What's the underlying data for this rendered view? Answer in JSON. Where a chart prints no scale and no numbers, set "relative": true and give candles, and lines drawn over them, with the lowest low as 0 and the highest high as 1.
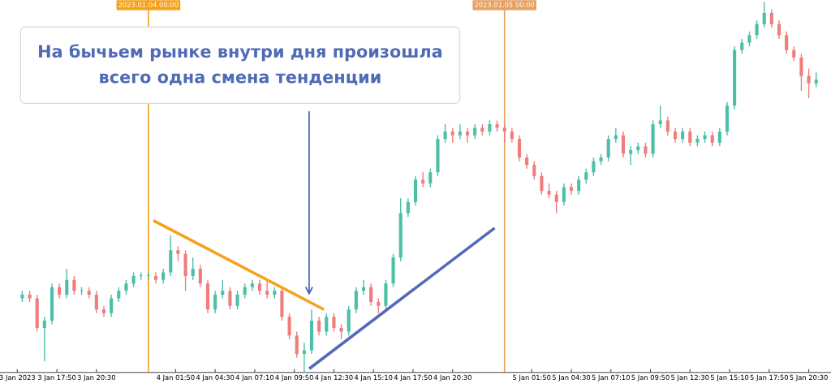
{
  "chart_data": {
    "type": "candlestick",
    "relative": true,
    "x": [
      "2023-01-03T15:30",
      "2023-01-03T16:00",
      "2023-01-03T16:30",
      "2023-01-03T17:00",
      "2023-01-03T17:30",
      "2023-01-03T18:00",
      "2023-01-03T18:30",
      "2023-01-03T19:00",
      "2023-01-03T19:30",
      "2023-01-03T20:00",
      "2023-01-03T20:30",
      "2023-01-03T21:00",
      "2023-01-03T21:30",
      "2023-01-03T22:00",
      "2023-01-03T22:30",
      "2023-01-03T23:00",
      "2023-01-03T23:30",
      "2023-01-04T00:00",
      "2023-01-04T00:30",
      "2023-01-04T01:00",
      "2023-01-04T01:30",
      "2023-01-04T02:00",
      "2023-01-04T02:30",
      "2023-01-04T03:00",
      "2023-01-04T03:30",
      "2023-01-04T04:00",
      "2023-01-04T04:30",
      "2023-01-04T05:00",
      "2023-01-04T05:30",
      "2023-01-04T06:00",
      "2023-01-04T06:30",
      "2023-01-04T07:00",
      "2023-01-04T07:30",
      "2023-01-04T08:00",
      "2023-01-04T08:30",
      "2023-01-04T09:00",
      "2023-01-04T09:30",
      "2023-01-04T10:00",
      "2023-01-04T10:30",
      "2023-01-04T11:00",
      "2023-01-04T11:30",
      "2023-01-04T12:00",
      "2023-01-04T12:30",
      "2023-01-04T13:00",
      "2023-01-04T13:30",
      "2023-01-04T14:00",
      "2023-01-04T14:30",
      "2023-01-04T15:00",
      "2023-01-04T15:30",
      "2023-01-04T16:00",
      "2023-01-04T16:30",
      "2023-01-04T17:00",
      "2023-01-04T17:30",
      "2023-01-04T18:00",
      "2023-01-04T18:30",
      "2023-01-04T19:00",
      "2023-01-04T19:30",
      "2023-01-04T20:00",
      "2023-01-04T20:30",
      "2023-01-04T21:00",
      "2023-01-04T21:30",
      "2023-01-04T22:00",
      "2023-01-04T22:30",
      "2023-01-04T23:00",
      "2023-01-04T23:30",
      "2023-01-05T00:00",
      "2023-01-05T00:30",
      "2023-01-05T01:00",
      "2023-01-05T01:30",
      "2023-01-05T02:00",
      "2023-01-05T02:30",
      "2023-01-05T03:00",
      "2023-01-05T03:30",
      "2023-01-05T04:00",
      "2023-01-05T04:30",
      "2023-01-05T05:00",
      "2023-01-05T05:30",
      "2023-01-05T06:00",
      "2023-01-05T06:30",
      "2023-01-05T07:00",
      "2023-01-05T07:30",
      "2023-01-05T08:00",
      "2023-01-05T08:30",
      "2023-01-05T09:00",
      "2023-01-05T09:30",
      "2023-01-05T10:00",
      "2023-01-05T10:30",
      "2023-01-05T11:00",
      "2023-01-05T11:30",
      "2023-01-05T12:00",
      "2023-01-05T12:30",
      "2023-01-05T13:00",
      "2023-01-05T13:30",
      "2023-01-05T14:00",
      "2023-01-05T14:30",
      "2023-01-05T15:00",
      "2023-01-05T15:30",
      "2023-01-05T16:00",
      "2023-01-05T16:30",
      "2023-01-05T17:00",
      "2023-01-05T17:30",
      "2023-01-05T18:00",
      "2023-01-05T18:30",
      "2023-01-05T19:00",
      "2023-01-05T19:30",
      "2023-01-05T20:00",
      "2023-01-05T20:30",
      "2023-01-05T21:00"
    ],
    "ohlc": [
      [
        0.2,
        0.22,
        0.19,
        0.21
      ],
      [
        0.21,
        0.22,
        0.19,
        0.2
      ],
      [
        0.2,
        0.21,
        0.11,
        0.12
      ],
      [
        0.12,
        0.15,
        0.03,
        0.14
      ],
      [
        0.14,
        0.24,
        0.13,
        0.23
      ],
      [
        0.23,
        0.24,
        0.2,
        0.21
      ],
      [
        0.21,
        0.28,
        0.2,
        0.25
      ],
      [
        0.25,
        0.26,
        0.21,
        0.22
      ],
      [
        0.22,
        0.23,
        0.21,
        0.22
      ],
      [
        0.22,
        0.23,
        0.2,
        0.21
      ],
      [
        0.21,
        0.22,
        0.16,
        0.17
      ],
      [
        0.17,
        0.18,
        0.15,
        0.16
      ],
      [
        0.16,
        0.21,
        0.15,
        0.2
      ],
      [
        0.2,
        0.23,
        0.19,
        0.22
      ],
      [
        0.22,
        0.25,
        0.21,
        0.24
      ],
      [
        0.24,
        0.27,
        0.23,
        0.26
      ],
      [
        0.26,
        0.27,
        0.25,
        0.26
      ],
      [
        0.26,
        0.27,
        0.25,
        0.26
      ],
      [
        0.26,
        0.27,
        0.24,
        0.25
      ],
      [
        0.25,
        0.28,
        0.24,
        0.27
      ],
      [
        0.27,
        0.37,
        0.26,
        0.33
      ],
      [
        0.33,
        0.34,
        0.3,
        0.32
      ],
      [
        0.32,
        0.33,
        0.22,
        0.26
      ],
      [
        0.26,
        0.31,
        0.25,
        0.28
      ],
      [
        0.28,
        0.29,
        0.23,
        0.24
      ],
      [
        0.24,
        0.25,
        0.16,
        0.17
      ],
      [
        0.17,
        0.22,
        0.16,
        0.21
      ],
      [
        0.21,
        0.25,
        0.2,
        0.22
      ],
      [
        0.22,
        0.23,
        0.17,
        0.18
      ],
      [
        0.18,
        0.22,
        0.17,
        0.21
      ],
      [
        0.21,
        0.24,
        0.2,
        0.23
      ],
      [
        0.23,
        0.25,
        0.22,
        0.24
      ],
      [
        0.24,
        0.25,
        0.21,
        0.22
      ],
      [
        0.22,
        0.25,
        0.2,
        0.21
      ],
      [
        0.21,
        0.23,
        0.2,
        0.22
      ],
      [
        0.22,
        0.23,
        0.14,
        0.15
      ],
      [
        0.15,
        0.16,
        0.09,
        0.1
      ],
      [
        0.1,
        0.11,
        0.04,
        0.05
      ],
      [
        0.05,
        0.08,
        0.0,
        0.06
      ],
      [
        0.06,
        0.17,
        0.05,
        0.14
      ],
      [
        0.14,
        0.15,
        0.1,
        0.11
      ],
      [
        0.11,
        0.16,
        0.1,
        0.15
      ],
      [
        0.15,
        0.16,
        0.11,
        0.12
      ],
      [
        0.12,
        0.13,
        0.09,
        0.11
      ],
      [
        0.11,
        0.18,
        0.1,
        0.17
      ],
      [
        0.17,
        0.23,
        0.16,
        0.22
      ],
      [
        0.22,
        0.25,
        0.21,
        0.23
      ],
      [
        0.23,
        0.24,
        0.18,
        0.19
      ],
      [
        0.19,
        0.2,
        0.16,
        0.18
      ],
      [
        0.18,
        0.25,
        0.17,
        0.24
      ],
      [
        0.24,
        0.32,
        0.23,
        0.31
      ],
      [
        0.31,
        0.47,
        0.3,
        0.43
      ],
      [
        0.43,
        0.47,
        0.42,
        0.46
      ],
      [
        0.46,
        0.53,
        0.45,
        0.52
      ],
      [
        0.52,
        0.54,
        0.5,
        0.51
      ],
      [
        0.51,
        0.55,
        0.5,
        0.54
      ],
      [
        0.54,
        0.64,
        0.53,
        0.63
      ],
      [
        0.63,
        0.67,
        0.62,
        0.65
      ],
      [
        0.65,
        0.66,
        0.62,
        0.64
      ],
      [
        0.64,
        0.67,
        0.63,
        0.65
      ],
      [
        0.65,
        0.66,
        0.62,
        0.64
      ],
      [
        0.64,
        0.67,
        0.63,
        0.66
      ],
      [
        0.66,
        0.67,
        0.64,
        0.65
      ],
      [
        0.65,
        0.68,
        0.64,
        0.67
      ],
      [
        0.67,
        0.68,
        0.65,
        0.66
      ],
      [
        0.66,
        0.67,
        0.62,
        0.65
      ],
      [
        0.65,
        0.66,
        0.62,
        0.63
      ],
      [
        0.63,
        0.64,
        0.57,
        0.58
      ],
      [
        0.58,
        0.59,
        0.55,
        0.56
      ],
      [
        0.56,
        0.57,
        0.52,
        0.53
      ],
      [
        0.53,
        0.54,
        0.48,
        0.49
      ],
      [
        0.49,
        0.51,
        0.47,
        0.48
      ],
      [
        0.48,
        0.49,
        0.43,
        0.46
      ],
      [
        0.46,
        0.51,
        0.45,
        0.5
      ],
      [
        0.5,
        0.51,
        0.48,
        0.49
      ],
      [
        0.49,
        0.53,
        0.48,
        0.52
      ],
      [
        0.52,
        0.55,
        0.51,
        0.54
      ],
      [
        0.54,
        0.58,
        0.53,
        0.57
      ],
      [
        0.57,
        0.59,
        0.56,
        0.58
      ],
      [
        0.58,
        0.64,
        0.57,
        0.63
      ],
      [
        0.63,
        0.66,
        0.62,
        0.64
      ],
      [
        0.64,
        0.65,
        0.58,
        0.59
      ],
      [
        0.59,
        0.61,
        0.56,
        0.6
      ],
      [
        0.6,
        0.62,
        0.59,
        0.61
      ],
      [
        0.61,
        0.62,
        0.58,
        0.59
      ],
      [
        0.59,
        0.68,
        0.58,
        0.67
      ],
      [
        0.67,
        0.72,
        0.66,
        0.68
      ],
      [
        0.68,
        0.69,
        0.64,
        0.65
      ],
      [
        0.65,
        0.66,
        0.62,
        0.63
      ],
      [
        0.63,
        0.66,
        0.62,
        0.65
      ],
      [
        0.65,
        0.66,
        0.61,
        0.62
      ],
      [
        0.62,
        0.64,
        0.61,
        0.63
      ],
      [
        0.63,
        0.65,
        0.62,
        0.64
      ],
      [
        0.64,
        0.65,
        0.61,
        0.62
      ],
      [
        0.62,
        0.66,
        0.61,
        0.65
      ],
      [
        0.65,
        0.73,
        0.64,
        0.72
      ],
      [
        0.72,
        0.88,
        0.71,
        0.87
      ],
      [
        0.87,
        0.9,
        0.86,
        0.89
      ],
      [
        0.89,
        0.92,
        0.88,
        0.91
      ],
      [
        0.91,
        0.95,
        0.9,
        0.94
      ],
      [
        0.94,
        1.0,
        0.93,
        0.97
      ],
      [
        0.97,
        0.98,
        0.93,
        0.94
      ],
      [
        0.94,
        0.95,
        0.9,
        0.91
      ],
      [
        0.91,
        0.92,
        0.86,
        0.87
      ],
      [
        0.87,
        0.88,
        0.84,
        0.85
      ],
      [
        0.85,
        0.86,
        0.76,
        0.8
      ],
      [
        0.8,
        0.82,
        0.74,
        0.78
      ],
      [
        0.78,
        0.81,
        0.77,
        0.79
      ]
    ],
    "series": [
      {
        "type": "line",
        "color": "#f7a11a",
        "x": [
          "2023-01-04T00:20",
          "2023-01-04T11:50"
        ],
        "values": [
          0.41,
          0.17
        ]
      },
      {
        "type": "line",
        "color": "#5468b8",
        "x": [
          "2023-01-04T10:50",
          "2023-01-04T23:20"
        ],
        "values": [
          0.01,
          0.39
        ]
      }
    ],
    "xlim": [
      "2023-01-03T14:00",
      "2023-01-05T22:00"
    ],
    "xticks": [
      {
        "value": "2023-01-03T15:10",
        "label": "3 Jan 2023"
      },
      {
        "value": "2023-01-03T17:50",
        "label": "3 Jan 17:50"
      },
      {
        "value": "2023-01-03T20:30",
        "label": "3 Jan 20:30"
      },
      {
        "value": "2023-01-04T01:50",
        "label": "4 Jan 01:50"
      },
      {
        "value": "2023-01-04T04:30",
        "label": "4 Jan 04:30"
      },
      {
        "value": "2023-01-04T07:10",
        "label": "4 Jan 07:10"
      },
      {
        "value": "2023-01-04T09:50",
        "label": "4 Jan 09:50"
      },
      {
        "value": "2023-01-04T12:30",
        "label": "4 Jan 12:30"
      },
      {
        "value": "2023-01-04T15:10",
        "label": "4 Jan 15:10"
      },
      {
        "value": "2023-01-04T17:50",
        "label": "4 Jan 17:50"
      },
      {
        "value": "2023-01-04T20:30",
        "label": "4 Jan 20:30"
      },
      {
        "value": "2023-01-05T01:50",
        "label": "5 Jan 01:50"
      },
      {
        "value": "2023-01-05T04:30",
        "label": "5 Jan 04:30"
      },
      {
        "value": "2023-01-05T07:10",
        "label": "5 Jan 07:10"
      },
      {
        "value": "2023-01-05T09:50",
        "label": "5 Jan 09:50"
      },
      {
        "value": "2023-01-05T12:30",
        "label": "5 Jan 12:30"
      },
      {
        "value": "2023-01-05T15:10",
        "label": "5 Jan 15:10"
      },
      {
        "value": "2023-01-05T17:50",
        "label": "5 Jan 17:50"
      },
      {
        "value": "2023-01-05T20:30",
        "label": "5 Jan 20:30"
      }
    ],
    "ref_lines": [
      {
        "axis": "x",
        "value": "2023-01-04T00:00",
        "label": "2023.01.04 00:00",
        "color": "#f7a11a"
      },
      {
        "axis": "x",
        "value": "2023-01-05T00:00",
        "label": "2023.01.05 00:00",
        "color": "#e8a060"
      }
    ],
    "annotations": [
      "На бычьем рынке внутри дня произошла\nвсего одна смена тенденции"
    ]
  }
}
